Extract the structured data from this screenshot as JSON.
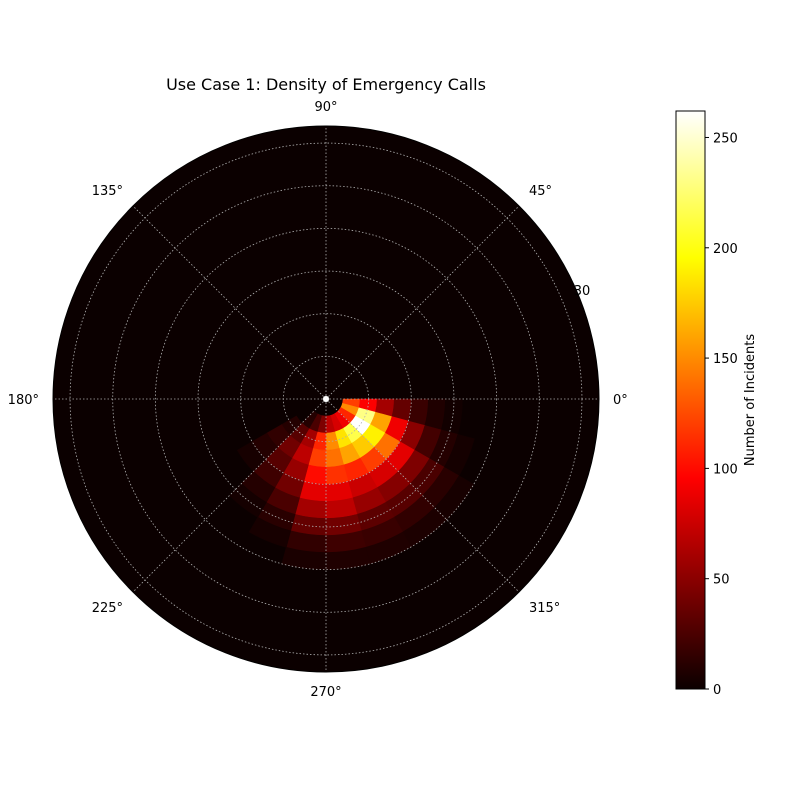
{
  "chart_data": {
    "type": "heatmap",
    "projection": "polar",
    "title": "Use Case 1: Density of Emergency Calls",
    "angle_tick_labels": [
      "0°",
      "45°",
      "90°",
      "135°",
      "180°",
      "225°",
      "270°",
      "315°"
    ],
    "angle_ticks_deg": [
      0,
      45,
      90,
      135,
      180,
      225,
      270,
      315
    ],
    "radial_tick_label": "30",
    "radial_tick_value": 30,
    "radial_gridlines": [
      5,
      10,
      15,
      20,
      25,
      30
    ],
    "rlim": [
      0,
      32
    ],
    "grid": true,
    "colormap": "hot",
    "theta_bin_width_deg": 15,
    "r_bin_width": 2,
    "cells_theta_start_deg": [
      345,
      330,
      315,
      300,
      285,
      270,
      255,
      240,
      225,
      210
    ],
    "cells_r_start": [
      2,
      4,
      6,
      8,
      10,
      12,
      14,
      16,
      18,
      20
    ],
    "values": [
      [
        120,
        95,
        60,
        35,
        18,
        8,
        3,
        0,
        0,
        0
      ],
      [
        150,
        230,
        160,
        90,
        50,
        22,
        10,
        4,
        0,
        0
      ],
      [
        110,
        262,
        190,
        140,
        85,
        45,
        25,
        12,
        5,
        0
      ],
      [
        90,
        215,
        175,
        120,
        80,
        48,
        30,
        15,
        7,
        0
      ],
      [
        80,
        185,
        160,
        110,
        75,
        55,
        32,
        18,
        8,
        0
      ],
      [
        70,
        150,
        140,
        115,
        85,
        70,
        40,
        20,
        8,
        0
      ],
      [
        45,
        110,
        120,
        100,
        85,
        60,
        35,
        15,
        6,
        0
      ],
      [
        25,
        60,
        70,
        55,
        40,
        25,
        12,
        5,
        0,
        0
      ],
      [
        10,
        30,
        40,
        30,
        20,
        10,
        4,
        0,
        0,
        0
      ],
      [
        0,
        10,
        15,
        10,
        5,
        0,
        0,
        0,
        0,
        0
      ]
    ],
    "colorbar": {
      "label": "Number of Incidents",
      "ticks": [
        0,
        50,
        100,
        150,
        200,
        250
      ],
      "tick_labels": [
        "0",
        "50",
        "100",
        "150",
        "200",
        "250"
      ],
      "range": [
        0,
        262
      ]
    }
  }
}
